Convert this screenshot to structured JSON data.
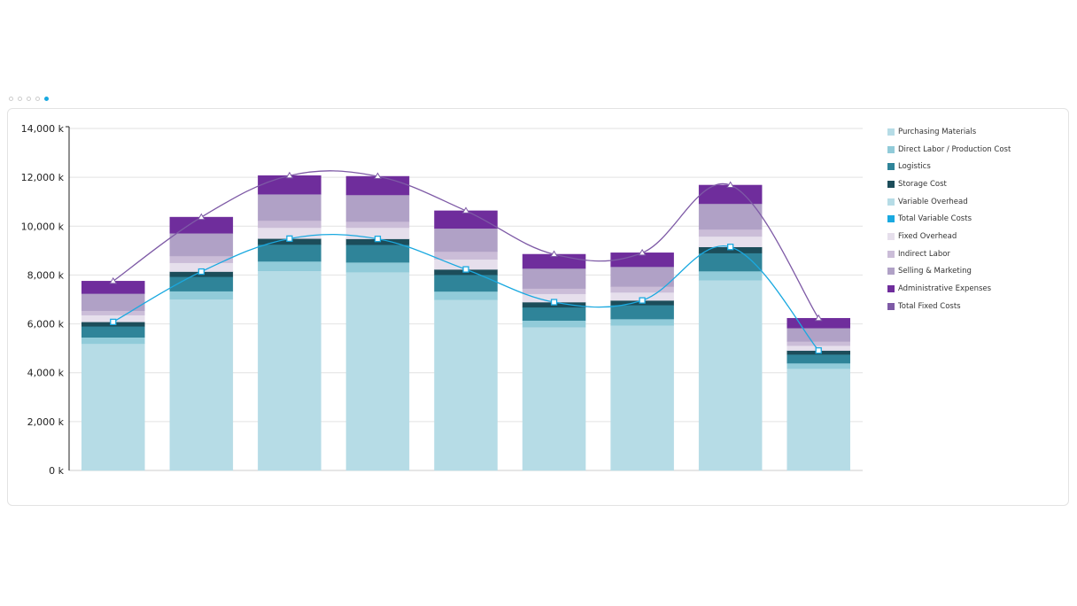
{
  "pager": {
    "count": 5,
    "active": 4
  },
  "chart_data": {
    "type": "bar",
    "stacked": true,
    "categories": [
      "",
      "",
      "",
      "",
      "",
      "",
      "",
      "",
      ""
    ],
    "ylim": [
      0,
      14000
    ],
    "yticks": [
      0,
      2000,
      4000,
      6000,
      8000,
      10000,
      12000,
      14000
    ],
    "ytick_labels": [
      "0 k",
      "2,000 k",
      "4,000 k",
      "6,000 k",
      "8,000 k",
      "10,000 k",
      "12,000 k",
      "14,000 k"
    ],
    "grid": true,
    "legend_position": "right",
    "series": [
      {
        "name": "Purchasing Materials",
        "kind": "bar",
        "color": "#b6dce6",
        "values": [
          5190,
          7010,
          8170,
          8120,
          6990,
          5870,
          5940,
          7790,
          4170
        ]
      },
      {
        "name": "Direct Labor / Production Cost",
        "kind": "bar",
        "color": "#91cbd9",
        "values": [
          260,
          330,
          390,
          400,
          340,
          270,
          260,
          370,
          220
        ]
      },
      {
        "name": "Logistics",
        "kind": "bar",
        "color": "#2f8499",
        "values": [
          450,
          590,
          690,
          720,
          680,
          540,
          570,
          740,
          360
        ]
      },
      {
        "name": "Storage Cost",
        "kind": "bar",
        "color": "#1c4d5a",
        "values": [
          180,
          210,
          240,
          240,
          220,
          210,
          190,
          250,
          160
        ]
      },
      {
        "name": "Variable Overhead",
        "kind": "bar",
        "color": "#b6dce6",
        "values": [
          0,
          0,
          0,
          0,
          0,
          0,
          0,
          0,
          0
        ]
      },
      {
        "name": "Total Variable Costs",
        "kind": "line",
        "color": "#1aa9e0",
        "marker": "square",
        "values": [
          6080,
          8140,
          9490,
          9480,
          8230,
          6890,
          6960,
          9150,
          4910
        ]
      },
      {
        "name": "Fixed Overhead",
        "kind": "bar",
        "color": "#e6dfec",
        "values": [
          280,
          360,
          450,
          460,
          410,
          340,
          330,
          430,
          200
        ]
      },
      {
        "name": "Indirect Labor",
        "kind": "bar",
        "color": "#cbbdd8",
        "values": [
          180,
          280,
          290,
          250,
          320,
          220,
          240,
          290,
          170
        ]
      },
      {
        "name": "Selling & Marketing",
        "kind": "bar",
        "color": "#b0a1c6",
        "values": [
          700,
          930,
          1080,
          1090,
          950,
          820,
          810,
          1050,
          550
        ]
      },
      {
        "name": "Administrative Expenses",
        "kind": "bar",
        "color": "#6f2d9c",
        "values": [
          510,
          660,
          760,
          760,
          720,
          580,
          570,
          760,
          400
        ]
      },
      {
        "name": "Total Fixed Costs",
        "kind": "line",
        "color": "#7e5aa6",
        "marker": "triangle",
        "values": [
          7750,
          10370,
          12070,
          12040,
          10630,
          8850,
          8910,
          11680,
          6230
        ]
      }
    ]
  }
}
